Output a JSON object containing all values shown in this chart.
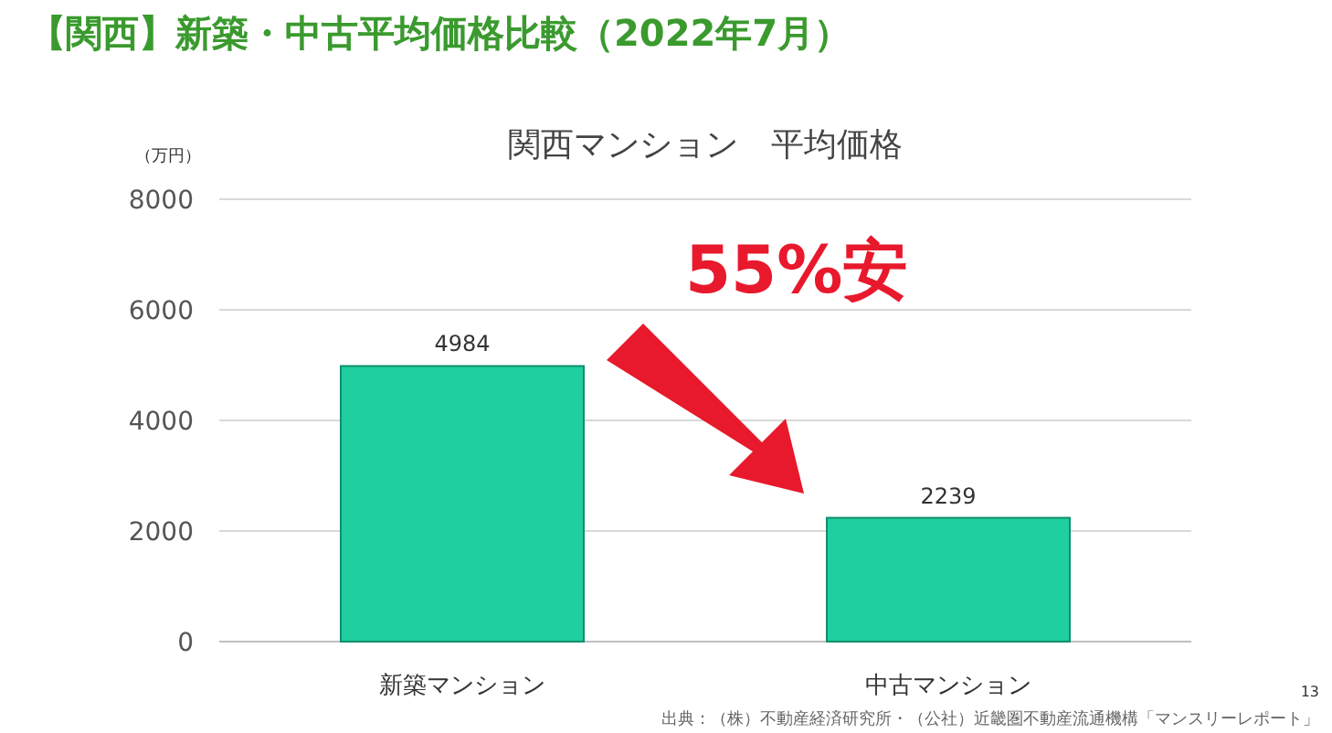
{
  "chart_data": {
    "type": "bar",
    "title": "【関西】新築・中古平均価格比較（2022年7月）",
    "subtitle": "関西マンション　平均価格",
    "ylabel": "（万円）",
    "categories": [
      "新築マンション",
      "中古マンション"
    ],
    "values": [
      4984,
      2239
    ],
    "color": "#1fcf9f",
    "ylim": [
      0,
      8000
    ],
    "yticks": [
      0,
      2000,
      4000,
      6000,
      8000
    ],
    "grid": "y",
    "data_labels": true,
    "annotations": [
      "55%安",
      "出典：（株）不動産経済研究所・（公社）近畿圏不動産流通機構「マンスリーレポート」",
      "13"
    ]
  }
}
